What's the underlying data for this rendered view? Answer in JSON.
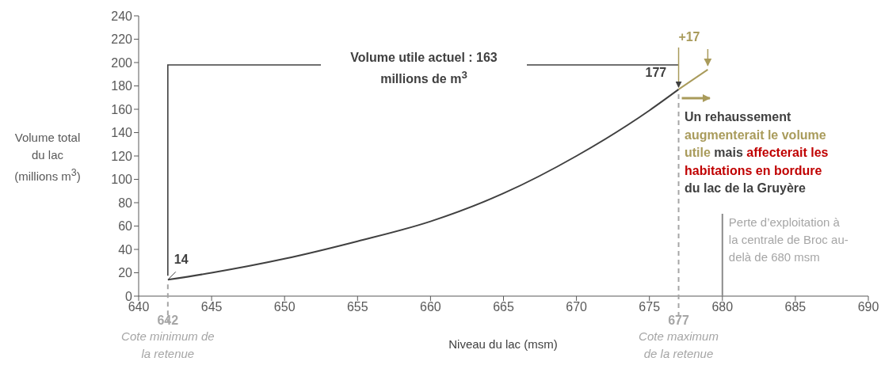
{
  "chart_data": {
    "type": "line",
    "xlabel": "Niveau du lac (msm)",
    "ylabel": "Volume total du lac (millions m$^{3}$)",
    "xlim": [
      640,
      690
    ],
    "xticks": [
      640,
      645,
      650,
      655,
      660,
      665,
      670,
      675,
      680,
      685,
      690
    ],
    "ylim": [
      0,
      240
    ],
    "yticks": [
      0,
      20,
      40,
      60,
      80,
      100,
      120,
      140,
      160,
      180,
      200,
      220,
      240
    ],
    "grid": false,
    "marker": "none",
    "line_style": "solid",
    "series": [
      {
        "color": "#404040",
        "x": [
          642,
          645,
          650,
          655,
          660,
          665,
          670,
          675,
          677
        ],
        "values": [
          14,
          20,
          32,
          47,
          64,
          88,
          120,
          159,
          177
        ]
      },
      {
        "color": "#a99b5b",
        "x": [
          677,
          679
        ],
        "values": [
          177,
          194
        ]
      }
    ],
    "ref_lines": [
      {
        "axis": "x",
        "value": 642,
        "label": "642 Cote minimum de la retenue",
        "color": "#a6a6a6",
        "line_style": "dashed"
      },
      {
        "axis": "x",
        "value": 677,
        "label": "677 Cote maximum de la retenue",
        "color": "#a6a6a6",
        "line_style": "dashed"
      },
      {
        "axis": "x",
        "value": 680,
        "label": "Perte d’exploitation à la centrale de Broc au-delà de 680 msm",
        "color": "#8c8c8c",
        "line_style": "solid"
      }
    ],
    "annotations": [
      {
        "text": "14",
        "x": 642,
        "y": 14
      },
      {
        "text": "177",
        "x": 677,
        "y": 177
      },
      {
        "text": "+17",
        "x": 679,
        "y": 194
      },
      "Volume utile actuel : 163 millions de m$^{3}$",
      "Un rehaussement",
      "augmenterait le volume",
      "utile",
      "mais",
      "affecterait les",
      "habitations en bordure",
      "du lac de la Gruyère"
    ]
  }
}
